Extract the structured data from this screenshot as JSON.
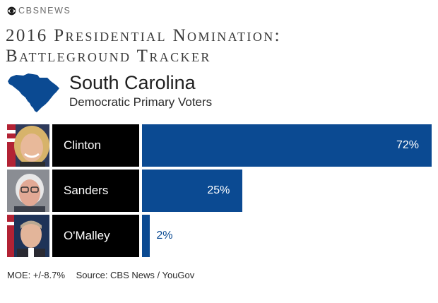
{
  "brand": {
    "text": "CBSNEWS",
    "logo": "cbs-eye-icon"
  },
  "header": {
    "title_line1": "2016 Presidential Nomination:",
    "title_line2": "Battleground Tracker",
    "state": "South Carolina",
    "subtitle": "Democratic Primary Voters",
    "state_icon": "south-carolina-map-icon"
  },
  "colors": {
    "bar": "#0b4a92",
    "name_box": "#000000",
    "brand_gray": "#6a6a6a"
  },
  "chart_data": {
    "type": "bar",
    "orientation": "horizontal",
    "categories": [
      "Clinton",
      "Sanders",
      "O'Malley"
    ],
    "values": [
      72,
      25,
      2
    ],
    "value_labels": [
      "72%",
      "25%",
      "2%"
    ],
    "unit": "%",
    "xlim": [
      0,
      72
    ]
  },
  "footer": {
    "moe": "MOE: +/-8.7%",
    "source": "Source: CBS News / YouGov"
  }
}
